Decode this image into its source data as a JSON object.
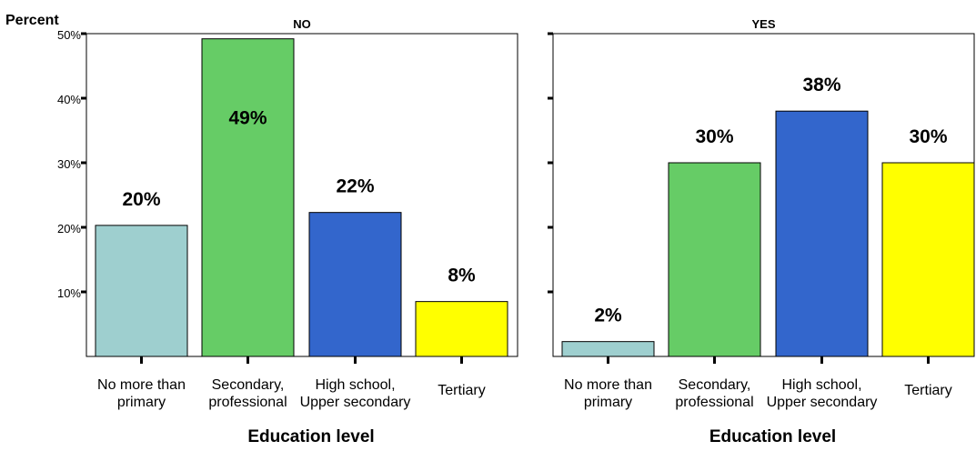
{
  "chart_data": {
    "type": "bar",
    "ylabel": "Percent",
    "xlabel": "Education level",
    "ylim": [
      0,
      50
    ],
    "yticks": [
      10,
      20,
      30,
      40,
      50
    ],
    "ytick_labels": [
      "10%",
      "20%",
      "30%",
      "40%",
      "50%"
    ],
    "categories": [
      [
        "No more than",
        "primary"
      ],
      [
        "Secondary,",
        "professional"
      ],
      [
        "High school,",
        "Upper secondary"
      ],
      [
        "Tertiary"
      ]
    ],
    "colors": [
      "#9ecfcf",
      "#66cc66",
      "#3366cc",
      "#ffff00"
    ],
    "panels": [
      {
        "title": "NO",
        "values": [
          20.3,
          49.2,
          22.3,
          8.5
        ],
        "labels": [
          "20%",
          "49%",
          "22%",
          "8%"
        ]
      },
      {
        "title": "YES",
        "values": [
          2.3,
          30,
          38,
          30
        ],
        "labels": [
          "2%",
          "30%",
          "38%",
          "30%"
        ]
      }
    ],
    "grid": false,
    "legend": "none"
  }
}
